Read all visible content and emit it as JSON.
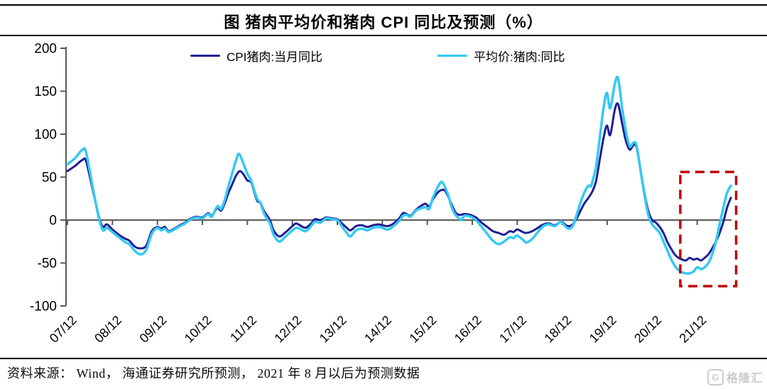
{
  "header": {
    "title": "图 猪肉平均价和猪肉 CPI 同比及预测（%）"
  },
  "legend": {
    "items": [
      {
        "label": "CPI猪肉:当月同比",
        "color": "#1E1E96"
      },
      {
        "label": "平均价:猪肉:同比",
        "color": "#35C8F2"
      }
    ]
  },
  "footer": {
    "source": "资料来源： Wind， 海通证券研究所预测， 2021 年 8 月以后为预测数据",
    "logo_letter": "G",
    "logo_text": "格隆汇"
  },
  "chart_data": {
    "type": "line",
    "title": "图 猪肉平均价和猪肉 CPI 同比及预测（%）",
    "xlabel": "",
    "ylabel": "",
    "ylim": [
      -100,
      200
    ],
    "yticks": [
      200,
      150,
      100,
      50,
      0,
      -50,
      -100
    ],
    "grid": false,
    "legend_position": "top",
    "x_axis": {
      "start_month": "2007-12",
      "months_per_tick": 12,
      "tick_labels": [
        "07/12",
        "08/12",
        "09/12",
        "10/12",
        "11/12",
        "12/12",
        "13/12",
        "14/12",
        "15/12",
        "16/12",
        "17/12",
        "18/12",
        "19/12",
        "20/12",
        "21/12"
      ],
      "x_unit": "months since 2007-12"
    },
    "axis_color": "#595959",
    "series": [
      {
        "name": "CPI猪肉:当月同比",
        "color": "#1E1E96",
        "width": 3,
        "points": [
          [
            0,
            57
          ],
          [
            2,
            63
          ],
          [
            4,
            70
          ],
          [
            5,
            68
          ],
          [
            7,
            30
          ],
          [
            8.5,
            2
          ],
          [
            9.5,
            -8
          ],
          [
            10.5,
            -5
          ],
          [
            12,
            -11
          ],
          [
            14,
            -18
          ],
          [
            15.5,
            -22
          ],
          [
            16.5,
            -24
          ],
          [
            18,
            -31
          ],
          [
            19.5,
            -33
          ],
          [
            21,
            -30
          ],
          [
            22.5,
            -13
          ],
          [
            24,
            -8
          ],
          [
            25,
            -10
          ],
          [
            26,
            -8
          ],
          [
            27,
            -13
          ],
          [
            28.5,
            -10
          ],
          [
            30,
            -6
          ],
          [
            31,
            -4
          ],
          [
            32,
            -1
          ],
          [
            33,
            2
          ],
          [
            34.5,
            4
          ],
          [
            36,
            3
          ],
          [
            37.5,
            8
          ],
          [
            38.5,
            5
          ],
          [
            40,
            14
          ],
          [
            41,
            11
          ],
          [
            42,
            20
          ],
          [
            43,
            32
          ],
          [
            44,
            42
          ],
          [
            45,
            52
          ],
          [
            46,
            57
          ],
          [
            47,
            53
          ],
          [
            48,
            46
          ],
          [
            49,
            44
          ],
          [
            50,
            30
          ],
          [
            50.7,
            22
          ],
          [
            51.5,
            20
          ],
          [
            52.5,
            10
          ],
          [
            54,
            0
          ],
          [
            55,
            -12
          ],
          [
            56.5,
            -19
          ],
          [
            58,
            -15
          ],
          [
            60,
            -7
          ],
          [
            61,
            -4
          ],
          [
            62,
            -6
          ],
          [
            63.5,
            -9
          ],
          [
            65,
            -4
          ],
          [
            66,
            1
          ],
          [
            67.5,
            0
          ],
          [
            69,
            3
          ],
          [
            70.5,
            2
          ],
          [
            72,
            1
          ],
          [
            73,
            -3
          ],
          [
            74.5,
            -9
          ],
          [
            75.5,
            -12
          ],
          [
            77,
            -7
          ],
          [
            78.5,
            -6
          ],
          [
            80,
            -8
          ],
          [
            81.5,
            -6
          ],
          [
            83,
            -5
          ],
          [
            84,
            -6
          ],
          [
            85.5,
            -7
          ],
          [
            87,
            -4
          ],
          [
            88.5,
            2
          ],
          [
            89.5,
            8
          ],
          [
            90.5,
            7
          ],
          [
            91.5,
            5
          ],
          [
            93,
            12
          ],
          [
            94.5,
            17
          ],
          [
            95.5,
            19
          ],
          [
            96.5,
            16
          ],
          [
            97.5,
            24
          ],
          [
            99,
            33
          ],
          [
            100.5,
            35
          ],
          [
            101.5,
            28
          ],
          [
            102.5,
            18
          ],
          [
            103.5,
            9
          ],
          [
            104.5,
            6
          ],
          [
            106,
            7
          ],
          [
            107.5,
            6
          ],
          [
            108,
            5
          ],
          [
            109,
            3
          ],
          [
            110.5,
            -3
          ],
          [
            112,
            -8
          ],
          [
            113.5,
            -13
          ],
          [
            115,
            -15
          ],
          [
            116.5,
            -17
          ],
          [
            118,
            -13
          ],
          [
            119,
            -14
          ],
          [
            120,
            -11
          ],
          [
            121.5,
            -14
          ],
          [
            122.5,
            -15
          ],
          [
            124,
            -13
          ],
          [
            125.5,
            -9
          ],
          [
            127,
            -5
          ],
          [
            128.5,
            -4
          ],
          [
            130,
            -6
          ],
          [
            131.5,
            -2
          ],
          [
            132,
            -2
          ],
          [
            133,
            -6
          ],
          [
            134,
            -7
          ],
          [
            135,
            -4
          ],
          [
            136,
            3
          ],
          [
            137,
            12
          ],
          [
            138,
            20
          ],
          [
            139,
            26
          ],
          [
            140,
            33
          ],
          [
            141,
            45
          ],
          [
            142,
            70
          ],
          [
            143,
            95
          ],
          [
            143.9,
            110
          ],
          [
            144.8,
            99
          ],
          [
            146,
            128
          ],
          [
            146.9,
            135
          ],
          [
            148,
            112
          ],
          [
            149,
            92
          ],
          [
            150,
            82
          ],
          [
            151,
            87
          ],
          [
            151.8,
            85
          ],
          [
            153,
            55
          ],
          [
            154,
            30
          ],
          [
            155,
            10
          ],
          [
            156,
            0
          ],
          [
            157,
            -3
          ],
          [
            158,
            -8
          ],
          [
            159,
            -15
          ],
          [
            160,
            -25
          ],
          [
            161,
            -33
          ],
          [
            162,
            -40
          ],
          [
            163,
            -44
          ],
          [
            164,
            -46
          ],
          [
            165,
            -47
          ],
          [
            166,
            -44
          ],
          [
            167,
            -46
          ],
          [
            168,
            -45
          ],
          [
            169,
            -47
          ],
          [
            170,
            -44
          ],
          [
            171,
            -40
          ],
          [
            172,
            -33
          ],
          [
            173,
            -25
          ],
          [
            174,
            -15
          ],
          [
            175,
            -2
          ],
          [
            176,
            15
          ],
          [
            177,
            26
          ]
        ]
      },
      {
        "name": "平均价:猪肉:同比",
        "color": "#35C8F2",
        "width": 3.5,
        "points": [
          [
            0,
            65
          ],
          [
            2,
            72
          ],
          [
            4,
            82
          ],
          [
            5,
            78
          ],
          [
            7,
            32
          ],
          [
            8.5,
            0
          ],
          [
            9.5,
            -12
          ],
          [
            10.5,
            -9
          ],
          [
            12,
            -14
          ],
          [
            14,
            -21
          ],
          [
            15.5,
            -26
          ],
          [
            16.5,
            -28
          ],
          [
            18,
            -36
          ],
          [
            19.5,
            -40
          ],
          [
            21,
            -35
          ],
          [
            22.5,
            -16
          ],
          [
            24,
            -9
          ],
          [
            25,
            -12
          ],
          [
            26,
            -10
          ],
          [
            27,
            -14
          ],
          [
            28.5,
            -11
          ],
          [
            30,
            -7
          ],
          [
            31,
            -5
          ],
          [
            32,
            -2
          ],
          [
            33,
            1
          ],
          [
            34.5,
            3
          ],
          [
            36,
            2
          ],
          [
            37.5,
            7
          ],
          [
            38.5,
            4
          ],
          [
            40,
            16
          ],
          [
            41,
            13
          ],
          [
            42,
            24
          ],
          [
            43,
            40
          ],
          [
            44,
            55
          ],
          [
            45,
            70
          ],
          [
            45.8,
            77
          ],
          [
            47,
            65
          ],
          [
            48,
            54
          ],
          [
            49,
            46
          ],
          [
            50,
            32
          ],
          [
            50.7,
            24
          ],
          [
            51.5,
            20
          ],
          [
            52.5,
            7
          ],
          [
            54,
            -4
          ],
          [
            55,
            -17
          ],
          [
            56.5,
            -25
          ],
          [
            58,
            -20
          ],
          [
            60,
            -12
          ],
          [
            61,
            -9
          ],
          [
            62,
            -10
          ],
          [
            63.5,
            -13
          ],
          [
            65,
            -7
          ],
          [
            66,
            -2
          ],
          [
            67.5,
            -3
          ],
          [
            69,
            2
          ],
          [
            70.5,
            1
          ],
          [
            72,
            0
          ],
          [
            73,
            -6
          ],
          [
            74.5,
            -15
          ],
          [
            75.5,
            -19
          ],
          [
            77,
            -12
          ],
          [
            78.5,
            -10
          ],
          [
            80,
            -12
          ],
          [
            81.5,
            -9
          ],
          [
            83,
            -8
          ],
          [
            84,
            -9
          ],
          [
            85.5,
            -11
          ],
          [
            87,
            -7
          ],
          [
            88.5,
            -1
          ],
          [
            89.5,
            5
          ],
          [
            90.5,
            6
          ],
          [
            91.5,
            4
          ],
          [
            93,
            11
          ],
          [
            94.5,
            14
          ],
          [
            95.5,
            15
          ],
          [
            96.5,
            13
          ],
          [
            97.5,
            26
          ],
          [
            99,
            40
          ],
          [
            100,
            44
          ],
          [
            101.5,
            30
          ],
          [
            102.5,
            15
          ],
          [
            103.5,
            6
          ],
          [
            104.5,
            2
          ],
          [
            105,
            0
          ],
          [
            106,
            5
          ],
          [
            107.5,
            4
          ],
          [
            108,
            3
          ],
          [
            109,
            0
          ],
          [
            110.5,
            -8
          ],
          [
            112,
            -16
          ],
          [
            113.5,
            -24
          ],
          [
            115,
            -28
          ],
          [
            116.5,
            -25
          ],
          [
            118,
            -20
          ],
          [
            119,
            -21
          ],
          [
            120,
            -18
          ],
          [
            121.5,
            -23
          ],
          [
            122.5,
            -26
          ],
          [
            124,
            -22
          ],
          [
            125.5,
            -14
          ],
          [
            127,
            -7
          ],
          [
            128.5,
            -5
          ],
          [
            130,
            -7
          ],
          [
            131.5,
            -2
          ],
          [
            132,
            -3
          ],
          [
            133,
            -8
          ],
          [
            134,
            -10
          ],
          [
            135,
            -5
          ],
          [
            136,
            8
          ],
          [
            137,
            22
          ],
          [
            138,
            33
          ],
          [
            139,
            40
          ],
          [
            139.6,
            39
          ],
          [
            140,
            44
          ],
          [
            141,
            62
          ],
          [
            142,
            95
          ],
          [
            143,
            130
          ],
          [
            143.9,
            148
          ],
          [
            144.8,
            130
          ],
          [
            146,
            158
          ],
          [
            146.9,
            165
          ],
          [
            148,
            130
          ],
          [
            149,
            103
          ],
          [
            150,
            86
          ],
          [
            151,
            90
          ],
          [
            151.8,
            87
          ],
          [
            153,
            55
          ],
          [
            154,
            28
          ],
          [
            155,
            5
          ],
          [
            156,
            -5
          ],
          [
            157,
            -10
          ],
          [
            158,
            -15
          ],
          [
            159,
            -25
          ],
          [
            160,
            -35
          ],
          [
            161,
            -45
          ],
          [
            162,
            -53
          ],
          [
            163,
            -58
          ],
          [
            164,
            -61
          ],
          [
            165,
            -62
          ],
          [
            166,
            -62
          ],
          [
            167,
            -60
          ],
          [
            168,
            -55
          ],
          [
            169,
            -57
          ],
          [
            170,
            -55
          ],
          [
            171,
            -50
          ],
          [
            172,
            -40
          ],
          [
            173,
            -25
          ],
          [
            174,
            -5
          ],
          [
            175,
            15
          ],
          [
            176,
            32
          ],
          [
            177,
            40
          ]
        ]
      }
    ],
    "annotation_box": {
      "meaning": "forecast period highlight",
      "color": "#C00000",
      "x_months": [
        163.5,
        178.4
      ],
      "y_values": [
        -77,
        56
      ]
    }
  }
}
